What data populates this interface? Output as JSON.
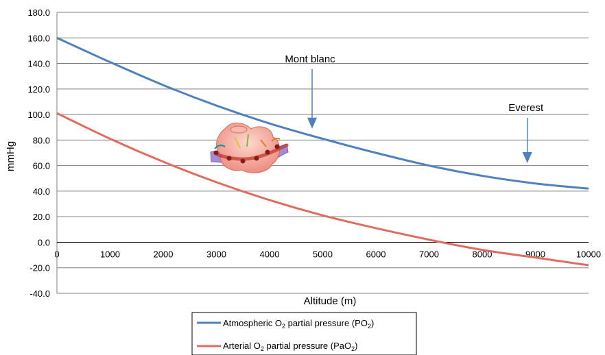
{
  "chart_data": {
    "type": "line",
    "xlabel": "Altitude (m)",
    "ylabel": "mmHg",
    "xlim": [
      0,
      10000
    ],
    "ylim": [
      -40,
      180
    ],
    "x_ticks": [
      "0",
      "1000",
      "2000",
      "3000",
      "4000",
      "5000",
      "6000",
      "7000",
      "8000",
      "9000",
      "10000"
    ],
    "y_ticks": [
      "180.0",
      "160.0",
      "140.0",
      "120.0",
      "100.0",
      "80.0",
      "60.0",
      "40.0",
      "20.0",
      "0.0",
      "-20.0",
      "-40.0"
    ],
    "grid": "horizontal",
    "legend_position": "bottom",
    "x": [
      0,
      1000,
      2000,
      3000,
      4000,
      5000,
      6000,
      7000,
      8000,
      9000,
      10000
    ],
    "series": [
      {
        "name": "Atmospheric O₂ partial pressure (PO₂)",
        "legend_main": "Atmospheric O",
        "legend_sub": "2",
        "legend_tail": " partial pressure (PO",
        "legend_sub2": "2",
        "legend_end": ")",
        "color": "#4f81bd",
        "values": [
          160,
          141,
          123,
          107,
          93,
          81,
          70,
          60,
          52,
          46,
          42
        ]
      },
      {
        "name": "Arterial O₂ partial pressure (PaO₂)",
        "legend_main": "Arterial O",
        "legend_sub": "2",
        "legend_tail": " partial pressure (PaO",
        "legend_sub2": "2",
        "legend_end": ")",
        "color": "#e06c5f",
        "values": [
          101,
          81,
          63,
          47,
          33,
          21,
          11,
          2,
          -6,
          -12,
          -18
        ]
      }
    ],
    "annotations": [
      {
        "text": "Mont blanc",
        "x": 4800,
        "y": 90
      },
      {
        "text": "Everest",
        "x": 8848,
        "y": 63
      }
    ]
  },
  "image": {
    "name": "alveolus-capillary-illustration"
  }
}
